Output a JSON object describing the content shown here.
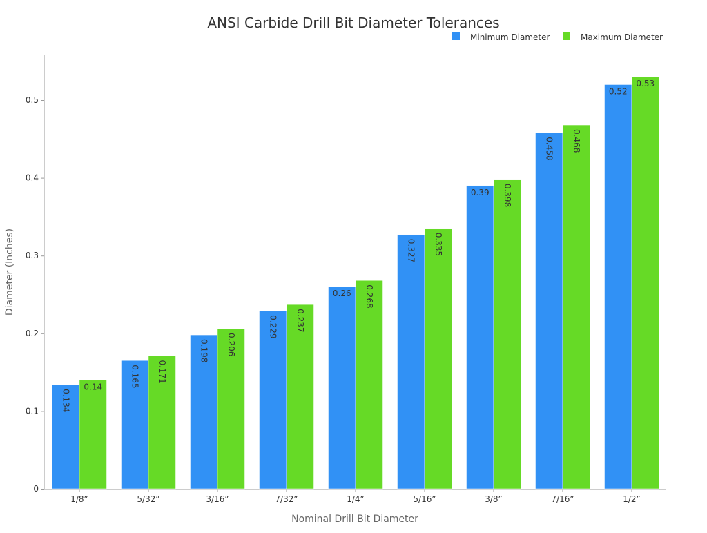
{
  "chart_data": {
    "type": "bar",
    "title": "ANSI Carbide Drill Bit Diameter Tolerances",
    "xlabel": "Nominal Drill Bit Diameter",
    "ylabel": "Diameter (Inches)",
    "categories": [
      "1/8”",
      "5/32”",
      "3/16”",
      "7/32”",
      "1/4”",
      "5/16”",
      "3/8”",
      "7/16”",
      "1/2”"
    ],
    "series": [
      {
        "name": "Minimum Diameter",
        "color": "#3191F5",
        "values": [
          0.134,
          0.165,
          0.198,
          0.229,
          0.26,
          0.327,
          0.39,
          0.458,
          0.52
        ]
      },
      {
        "name": "Maximum Diameter",
        "color": "#66DA26",
        "values": [
          0.14,
          0.171,
          0.206,
          0.237,
          0.268,
          0.335,
          0.398,
          0.468,
          0.53
        ]
      }
    ],
    "ylim": [
      0,
      0.556
    ],
    "yticks": [
      0,
      0.1,
      0.2,
      0.3,
      0.4,
      0.5
    ],
    "ytick_labels": [
      "0",
      "0.1",
      "0.2",
      "0.3",
      "0.4",
      "0.5"
    ],
    "grid": false,
    "legend": "top-right",
    "data_labels": true
  }
}
